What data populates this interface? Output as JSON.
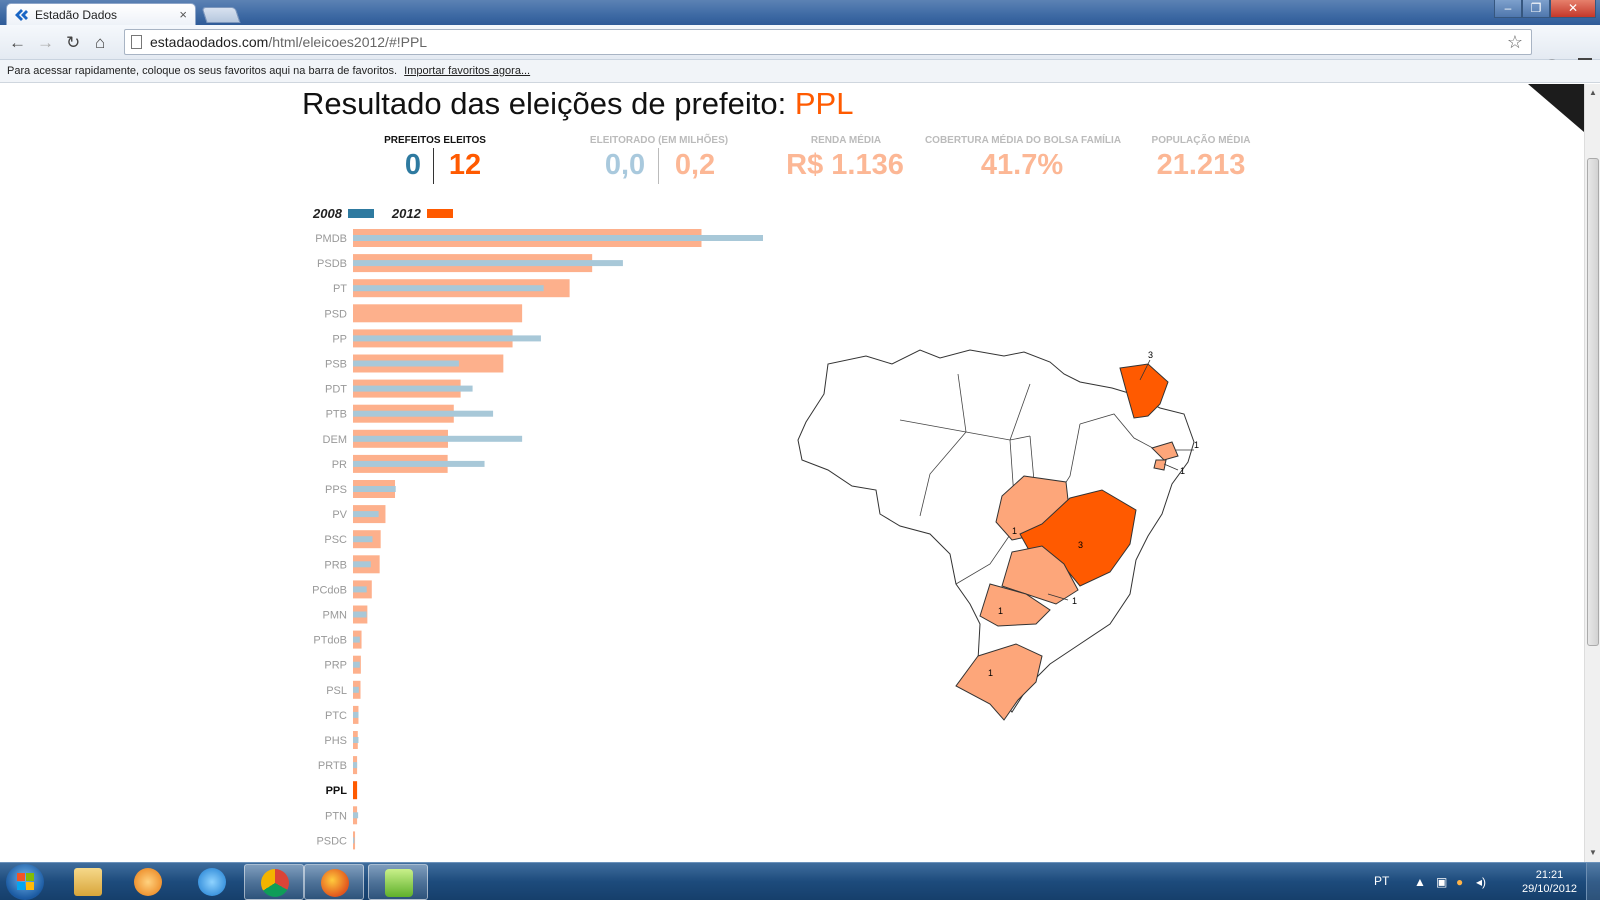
{
  "browser": {
    "tab_title": "Estadão Dados",
    "tab_close": "×",
    "url_domain": "estadaodados.com",
    "url_path": "/html/eleicoes2012/#!PPL",
    "bookmarks_hint": "Para acessar rapidamente, coloque os seus favoritos aqui na barra de favoritos.",
    "bookmarks_import": "Importar favoritos agora..."
  },
  "header": {
    "title_prefix": "Resultado das eleições de prefeito: ",
    "party": "PPL"
  },
  "stats": {
    "prefeitos_label": "PREFEITOS ELEITOS",
    "prefeitos_2008": "0",
    "prefeitos_2012": "12",
    "eleitorado_label": "ELEITORADO (EM MILHÕES)",
    "eleitorado_2008": "0,0",
    "eleitorado_2012": "0,2",
    "renda_label": "RENDA MÉDIA",
    "renda_value": "R$ 1.136",
    "bolsa_label": "COBERTURA MÉDIA DO BOLSA FAMÍLIA",
    "bolsa_value": "41.7%",
    "populacao_label": "POPULAÇÃO MÉDIA",
    "populacao_value": "21.213"
  },
  "legend": {
    "label_2008": "2008",
    "label_2012": "2012"
  },
  "colors": {
    "accent": "#ff5a00",
    "bar_2012": "#fdb08c",
    "bar_2008": "#a8c8d8",
    "dark_2008": "#2e7aa0",
    "faded_2008": "#a9c9dd",
    "faded_2012": "#fcb795",
    "state_strong": "#ff5a00",
    "state_light": "#fda67a"
  },
  "chart_data": {
    "type": "bar",
    "orientation": "horizontal",
    "highlight": "PPL",
    "categories": [
      "PMDB",
      "PSDB",
      "PT",
      "PSD",
      "PP",
      "PSB",
      "PDT",
      "PTB",
      "DEM",
      "PR",
      "PPS",
      "PV",
      "PSC",
      "PRB",
      "PCdoB",
      "PMN",
      "PTdoB",
      "PRP",
      "PSL",
      "PTC",
      "PHS",
      "PRTB",
      "PPL",
      "PTN",
      "PSDC"
    ],
    "series": [
      {
        "name": "2012",
        "values": [
          1020,
          700,
          634,
          495,
          467,
          440,
          315,
          295,
          278,
          277,
          123,
          95,
          81,
          78,
          55,
          42,
          25,
          23,
          22,
          16,
          14,
          12,
          12,
          12,
          6
        ]
      },
      {
        "name": "2008",
        "values": [
          1200,
          790,
          558,
          0,
          550,
          310,
          350,
          410,
          495,
          385,
          125,
          75,
          57,
          52,
          40,
          40,
          20,
          20,
          17,
          16,
          16,
          12,
          0,
          15,
          4
        ]
      }
    ]
  },
  "map": {
    "state_counts": {
      "CE": "3",
      "AL": "1",
      "SE": "1",
      "MG": "3",
      "GO": "1",
      "SP": "1",
      "PR": "1",
      "RS": "1"
    }
  },
  "taskbar": {
    "lang": "PT",
    "time": "21:21",
    "date": "29/10/2012"
  }
}
